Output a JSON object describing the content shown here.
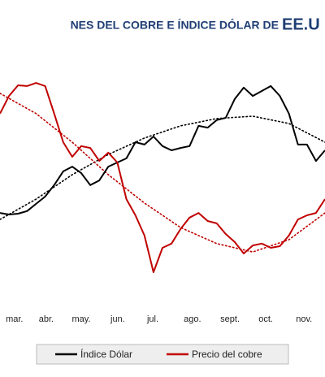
{
  "chart_data": {
    "type": "line",
    "title": "NES DEL COBRE E ÍNDICE DÓLAR DE",
    "title_end": "EE.U",
    "title_color": "#1f3e74",
    "x": [
      0,
      0.25,
      0.5,
      0.75,
      1,
      1.25,
      1.5,
      1.75,
      2,
      2.25,
      2.5,
      2.75,
      3,
      3.25,
      3.5,
      3.75,
      4,
      4.25,
      4.5,
      4.75,
      5,
      5.25,
      5.5,
      5.75,
      6,
      6.25,
      6.5,
      6.75,
      7,
      7.25,
      7.5,
      7.75,
      8,
      8.25,
      8.5,
      8.75,
      9
    ],
    "xlim": [
      0,
      9
    ],
    "xticks": [
      {
        "value": 0.4,
        "label": "mar."
      },
      {
        "value": 1.28,
        "label": "abr."
      },
      {
        "value": 2.25,
        "label": "may."
      },
      {
        "value": 3.26,
        "label": "jun."
      },
      {
        "value": 4.23,
        "label": "jul."
      },
      {
        "value": 5.33,
        "label": "ago."
      },
      {
        "value": 6.37,
        "label": "sept."
      },
      {
        "value": 7.36,
        "label": "oct."
      },
      {
        "value": 8.42,
        "label": "nov."
      }
    ],
    "ylim": [
      0,
      100
    ],
    "series": [
      {
        "name": "Índice Dólar",
        "color": "#000000",
        "values": [
          30.6,
          30,
          30.3,
          31.3,
          34.1,
          36.9,
          41.3,
          46.6,
          48.4,
          45.9,
          41.3,
          43.1,
          48.4,
          50,
          51.6,
          57.8,
          56.9,
          60,
          56.3,
          54.7,
          55.6,
          56.3,
          64.1,
          63.4,
          66.3,
          67.2,
          74.4,
          78.8,
          75.6,
          77.5,
          79.4,
          75.6,
          68.8,
          56.9,
          56.9,
          50.6,
          54.7
        ]
      },
      {
        "name": "Precio del cobre",
        "color": "#c00000",
        "values": [
          68.8,
          75.6,
          79.7,
          79.4,
          80.6,
          79.4,
          68.8,
          57.8,
          52.2,
          56.3,
          55.6,
          50.6,
          53.8,
          50,
          35.9,
          29.7,
          21.9,
          7.8,
          17.2,
          18.8,
          24.4,
          28.8,
          30.6,
          27.5,
          26.6,
          22.5,
          19.4,
          15,
          18.1,
          18.8,
          17.2,
          17.8,
          21.9,
          28.1,
          29.7,
          30.6,
          35.9
        ]
      }
    ],
    "trends": [
      {
        "color": "#000000",
        "x": [
          0,
          1,
          2,
          3,
          4,
          5,
          6,
          7,
          8,
          9
        ],
        "values": [
          28.1,
          35.9,
          45.3,
          53.1,
          59.4,
          64.1,
          66.9,
          67.8,
          65,
          57.8
        ]
      },
      {
        "color": "#c00000",
        "x": [
          0,
          1,
          2,
          3,
          4,
          5,
          6,
          7,
          8,
          9
        ],
        "values": [
          76.6,
          68.8,
          57.8,
          45.3,
          34.4,
          25,
          18.8,
          15.6,
          20.3,
          30.6
        ]
      }
    ]
  }
}
